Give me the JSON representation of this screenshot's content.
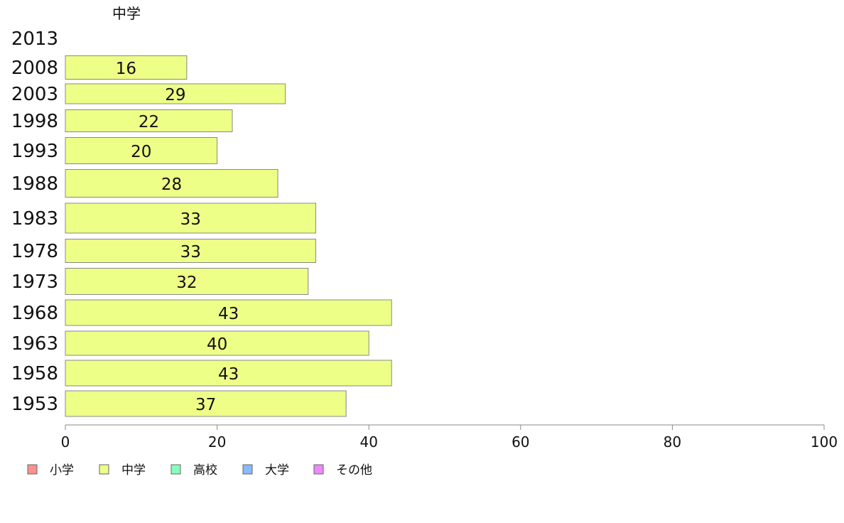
{
  "chart_data": {
    "type": "bar",
    "orientation": "horizontal",
    "title": "中学",
    "categories": [
      "2013",
      "2008",
      "2003",
      "1998",
      "1993",
      "1988",
      "1983",
      "1978",
      "1973",
      "1968",
      "1963",
      "1958",
      "1953"
    ],
    "series": [
      {
        "name": "中学",
        "color": "#eeff88",
        "values": [
          null,
          16,
          29,
          22,
          20,
          28,
          33,
          33,
          32,
          43,
          40,
          43,
          37
        ],
        "labels": [
          "",
          "16",
          "29",
          "22",
          "20",
          "28",
          "33",
          "33",
          "32",
          "43",
          "40",
          "43",
          "37"
        ]
      }
    ],
    "xlim": [
      0,
      100
    ],
    "xticks": [
      0,
      20,
      40,
      60,
      80,
      100
    ],
    "xtick_labels": [
      "0",
      "20",
      "40",
      "60",
      "80",
      "100"
    ],
    "grid": false,
    "legend_position": "bottom-left",
    "legend": [
      {
        "label": "小学",
        "color": "#ff9090"
      },
      {
        "label": "中学",
        "color": "#eeff88"
      },
      {
        "label": "高校",
        "color": "#88ffbb"
      },
      {
        "label": "大学",
        "color": "#88bbff"
      },
      {
        "label": "その他",
        "color": "#ee88ff"
      }
    ],
    "bar_border_color": "#888888",
    "axis_color": "#888888"
  }
}
